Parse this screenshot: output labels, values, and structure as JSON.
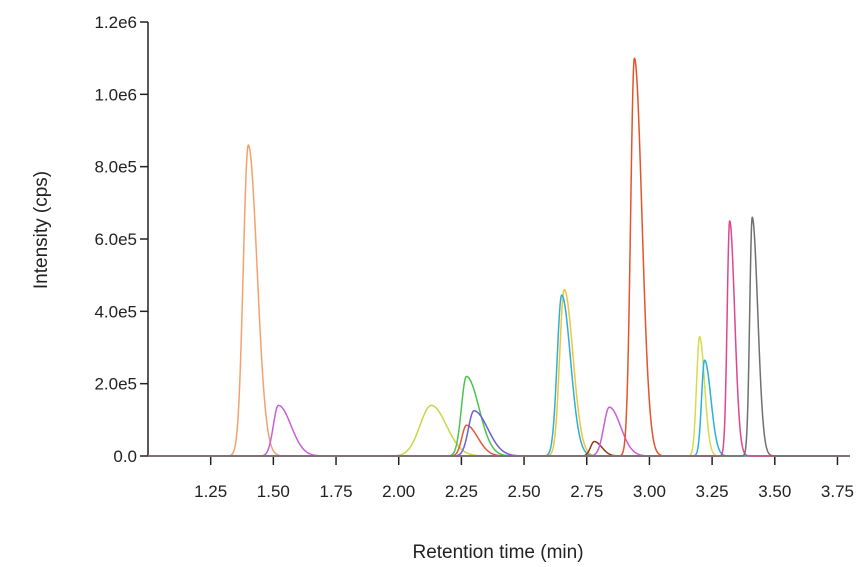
{
  "chart_data": {
    "type": "line",
    "title": "",
    "xlabel": "Retention time (min)",
    "ylabel": "Intensity (cps)",
    "xlim": [
      1.0,
      3.8
    ],
    "ylim": [
      0,
      1200000
    ],
    "x_ticks": [
      1.25,
      1.5,
      1.75,
      2.0,
      2.25,
      2.5,
      2.75,
      3.0,
      3.25,
      3.5,
      3.75
    ],
    "x_tick_labels": [
      "1.25",
      "1.50",
      "1.75",
      "2.00",
      "2.25",
      "2.50",
      "2.75",
      "3.00",
      "3.25",
      "3.50",
      "3.75"
    ],
    "y_ticks": [
      0,
      200000,
      400000,
      600000,
      800000,
      1000000,
      1200000
    ],
    "y_tick_labels": [
      "0.0",
      "2.0e5",
      "4.0e5",
      "6.0e5",
      "8.0e5",
      "1.0e6",
      "1.2e6"
    ],
    "grid": false,
    "legend": "none",
    "peaks": [
      {
        "color": "#f4a26c",
        "rt": 1.4,
        "height": 860000,
        "rise": 0.02,
        "tail": 0.035
      },
      {
        "color": "#c95fd8",
        "rt": 1.52,
        "height": 140000,
        "rise": 0.02,
        "tail": 0.05
      },
      {
        "color": "#c9d64a",
        "rt": 2.13,
        "height": 140000,
        "rise": 0.045,
        "tail": 0.06
      },
      {
        "color": "#4cc44c",
        "rt": 2.27,
        "height": 220000,
        "rise": 0.02,
        "tail": 0.05
      },
      {
        "color": "#e0593a",
        "rt": 2.27,
        "height": 85000,
        "rise": 0.018,
        "tail": 0.045
      },
      {
        "color": "#6b5fd8",
        "rt": 2.3,
        "height": 125000,
        "rise": 0.022,
        "tail": 0.055
      },
      {
        "color": "#f2c43c",
        "rt": 2.66,
        "height": 460000,
        "rise": 0.018,
        "tail": 0.035
      },
      {
        "color": "#2bb0d8",
        "rt": 2.65,
        "height": 445000,
        "rise": 0.018,
        "tail": 0.035
      },
      {
        "color": "#8b3a1e",
        "rt": 2.78,
        "height": 40000,
        "rise": 0.015,
        "tail": 0.03
      },
      {
        "color": "#c95fd8",
        "rt": 2.84,
        "height": 135000,
        "rise": 0.022,
        "tail": 0.045
      },
      {
        "color": "#e5532b",
        "rt": 2.94,
        "height": 1100000,
        "rise": 0.015,
        "tail": 0.03
      },
      {
        "color": "#d6dc4a",
        "rt": 3.2,
        "height": 330000,
        "rise": 0.012,
        "tail": 0.02
      },
      {
        "color": "#2bb0d8",
        "rt": 3.22,
        "height": 265000,
        "rise": 0.012,
        "tail": 0.025
      },
      {
        "color": "#e0458f",
        "rt": 3.32,
        "height": 650000,
        "rise": 0.01,
        "tail": 0.02
      },
      {
        "color": "#707070",
        "rt": 3.41,
        "height": 660000,
        "rise": 0.01,
        "tail": 0.022
      }
    ]
  }
}
